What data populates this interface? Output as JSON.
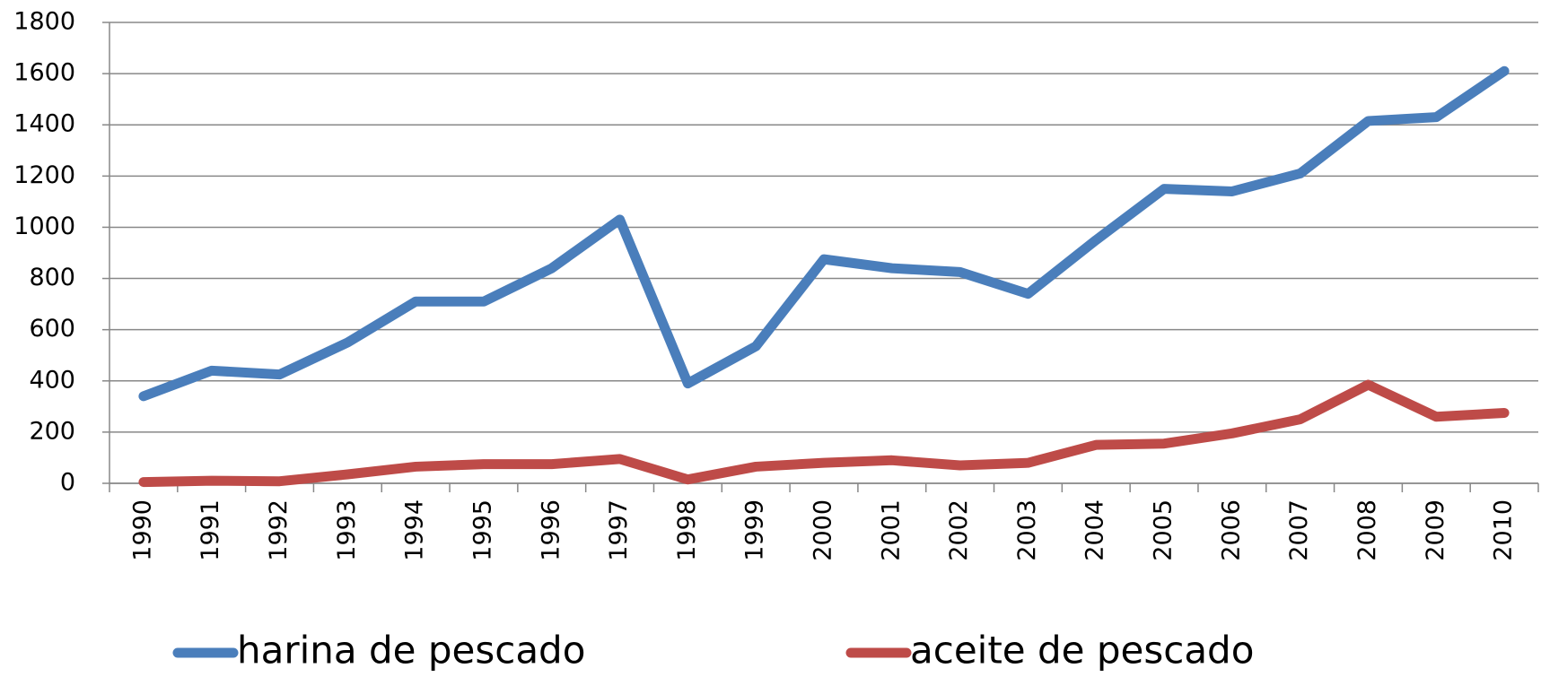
{
  "chart_data": {
    "type": "line",
    "categories": [
      "1990",
      "1991",
      "1992",
      "1993",
      "1994",
      "1995",
      "1996",
      "1997",
      "1998",
      "1999",
      "2000",
      "2001",
      "2002",
      "2003",
      "2004",
      "2005",
      "2006",
      "2007",
      "2008",
      "2009",
      "2010"
    ],
    "series": [
      {
        "name": "harina de pescado",
        "color": "#4a7ebb",
        "values": [
          340,
          440,
          425,
          550,
          710,
          710,
          840,
          1030,
          390,
          535,
          875,
          840,
          825,
          740,
          950,
          1150,
          1140,
          1210,
          1415,
          1430,
          1610
        ]
      },
      {
        "name": "aceite de pescado",
        "color": "#be4b48",
        "values": [
          5,
          10,
          8,
          35,
          65,
          75,
          75,
          95,
          15,
          65,
          80,
          90,
          70,
          80,
          150,
          155,
          195,
          250,
          385,
          260,
          275
        ]
      }
    ],
    "ylim": [
      0,
      1800
    ],
    "yticks": [
      0,
      200,
      400,
      600,
      800,
      1000,
      1200,
      1400,
      1600,
      1800
    ],
    "grid": true,
    "legend": "bottom"
  }
}
